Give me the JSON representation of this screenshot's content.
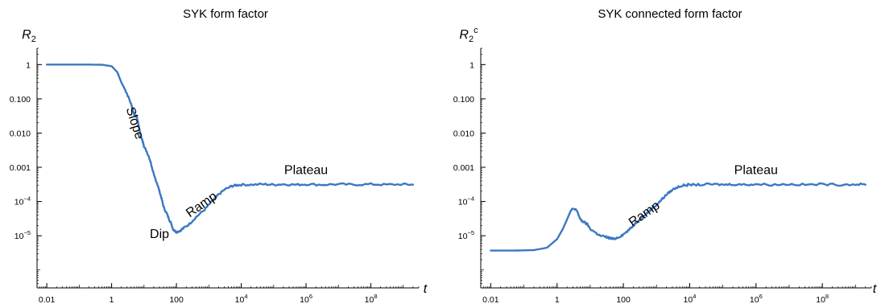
{
  "chart_data": [
    {
      "type": "line",
      "title": "SYK form factor",
      "ylabel": "R",
      "ylabel_sub": "2",
      "ylabel_sup": "",
      "xlabel": "t",
      "x_scale": "log",
      "y_scale": "log",
      "xlim": [
        0.005,
        3000000000.0
      ],
      "ylim": [
        3e-07,
        3
      ],
      "x_ticks": [
        {
          "value": 0.01,
          "label": "0.01",
          "base": "",
          "exp": ""
        },
        {
          "value": 1,
          "label": "1",
          "base": "",
          "exp": ""
        },
        {
          "value": 100,
          "label": "100",
          "base": "",
          "exp": ""
        },
        {
          "value": 10000,
          "label": "",
          "base": "10",
          "exp": "4"
        },
        {
          "value": 1000000,
          "label": "",
          "base": "10",
          "exp": "6"
        },
        {
          "value": 100000000,
          "label": "",
          "base": "10",
          "exp": "8"
        }
      ],
      "y_ticks": [
        {
          "value": 1,
          "label": "1",
          "base": "",
          "exp": ""
        },
        {
          "value": 0.1,
          "label": "0.100",
          "base": "",
          "exp": ""
        },
        {
          "value": 0.01,
          "label": "0.010",
          "base": "",
          "exp": ""
        },
        {
          "value": 0.001,
          "label": "0.001",
          "base": "",
          "exp": ""
        },
        {
          "value": 0.0001,
          "label": "",
          "base": "10",
          "exp": "−4"
        },
        {
          "value": 1e-05,
          "label": "",
          "base": "10",
          "exp": "−5"
        }
      ],
      "series": [
        {
          "color": "#3b78c3",
          "x": [
            0.01,
            0.05,
            0.2,
            0.5,
            1,
            1.5,
            2,
            2.5,
            3,
            4,
            5,
            6,
            7,
            8,
            9,
            10,
            12,
            14,
            16,
            18,
            20,
            25,
            30,
            35,
            40,
            50,
            60,
            70,
            80,
            100,
            130,
            170,
            250,
            400,
            700,
            1000,
            1500,
            2000,
            3000,
            5000,
            7000,
            10000,
            20000,
            50000,
            100000,
            200000,
            500000,
            1000000,
            3000000,
            10000000,
            30000000,
            100000000,
            300000000,
            1000000000,
            2000000000
          ],
          "y": [
            1,
            1,
            1,
            0.99,
            0.9,
            0.6,
            0.3,
            0.2,
            0.14,
            0.07,
            0.035,
            0.03,
            0.015,
            0.008,
            0.006,
            0.004,
            0.003,
            0.002,
            0.0014,
            0.0009,
            0.0006,
            0.00035,
            0.0002,
            0.00012,
            7e-05,
            4.5e-05,
            3e-05,
            2.2e-05,
            1.5e-05,
            1.3e-05,
            1.4e-05,
            1.7e-05,
            2.2e-05,
            3.5e-05,
            5.5e-05,
            8e-05,
            0.00012,
            0.00016,
            0.00022,
            0.00028,
            0.0003,
            0.00031,
            0.00031,
            0.00032,
            0.00031,
            0.00032,
            0.00031,
            0.00032,
            0.00031,
            0.00032,
            0.00031,
            0.00032,
            0.00031,
            0.00032,
            0.00031
          ]
        }
      ],
      "annotations": [
        {
          "text": "Slope",
          "x": 4,
          "y": 0.018,
          "rotate": 72
        },
        {
          "text": "Dip",
          "x": 30,
          "y": 8.5e-06,
          "rotate": 0
        },
        {
          "text": "Ramp",
          "x": 700,
          "y": 6.5e-05,
          "rotate": -35
        },
        {
          "text": "Plateau",
          "x": 1000000,
          "y": 0.00063,
          "rotate": 0
        }
      ]
    },
    {
      "type": "line",
      "title": "SYK connected form factor",
      "ylabel": "R",
      "ylabel_sub": "2",
      "ylabel_sup": "c",
      "xlabel": "t",
      "x_scale": "log",
      "y_scale": "log",
      "xlim": [
        0.005,
        3000000000.0
      ],
      "ylim": [
        3e-07,
        3
      ],
      "x_ticks": [
        {
          "value": 0.01,
          "label": "0.01",
          "base": "",
          "exp": ""
        },
        {
          "value": 1,
          "label": "1",
          "base": "",
          "exp": ""
        },
        {
          "value": 100,
          "label": "100",
          "base": "",
          "exp": ""
        },
        {
          "value": 10000,
          "label": "",
          "base": "10",
          "exp": "4"
        },
        {
          "value": 1000000,
          "label": "",
          "base": "10",
          "exp": "6"
        },
        {
          "value": 100000000,
          "label": "",
          "base": "10",
          "exp": "8"
        }
      ],
      "y_ticks": [
        {
          "value": 1,
          "label": "1",
          "base": "",
          "exp": ""
        },
        {
          "value": 0.1,
          "label": "0.100",
          "base": "",
          "exp": ""
        },
        {
          "value": 0.01,
          "label": "0.010",
          "base": "",
          "exp": ""
        },
        {
          "value": 0.001,
          "label": "0.001",
          "base": "",
          "exp": ""
        },
        {
          "value": 0.0001,
          "label": "",
          "base": "10",
          "exp": "−4"
        },
        {
          "value": 1e-05,
          "label": "",
          "base": "10",
          "exp": "−5"
        }
      ],
      "series": [
        {
          "color": "#3b78c3",
          "x": [
            0.01,
            0.05,
            0.2,
            0.5,
            1,
            1.5,
            2,
            2.5,
            3,
            4,
            5,
            6,
            8,
            10,
            15,
            20,
            30,
            40,
            50,
            70,
            100,
            150,
            200,
            300,
            500,
            700,
            1000,
            1500,
            2000,
            3000,
            5000,
            7000,
            10000,
            20000,
            50000,
            100000,
            200000,
            500000,
            1000000,
            3000000,
            10000000,
            30000000,
            100000000,
            300000000,
            1000000000,
            2000000000
          ],
          "y": [
            3.7e-06,
            3.7e-06,
            3.8e-06,
            4.5e-06,
            8e-06,
            1.6e-05,
            3e-05,
            5e-05,
            6.2e-05,
            5.5e-05,
            3e-05,
            2.6e-05,
            2.2e-05,
            1.6e-05,
            1.2e-05,
            1e-05,
            9.2e-06,
            8.5e-06,
            8e-06,
            9e-06,
            1.1e-05,
            1.5e-05,
            2e-05,
            3e-05,
            4.5e-05,
            6e-05,
            8e-05,
            0.00012,
            0.00016,
            0.00022,
            0.00028,
            0.0003,
            0.00031,
            0.00031,
            0.00032,
            0.00031,
            0.00032,
            0.00031,
            0.00032,
            0.00031,
            0.00032,
            0.00031,
            0.00032,
            0.00031,
            0.00032,
            0.00031
          ]
        }
      ],
      "annotations": [
        {
          "text": "Ramp",
          "x": 500,
          "y": 3.5e-05,
          "rotate": -35
        },
        {
          "text": "Plateau",
          "x": 1000000,
          "y": 0.00063,
          "rotate": 0
        }
      ]
    }
  ]
}
